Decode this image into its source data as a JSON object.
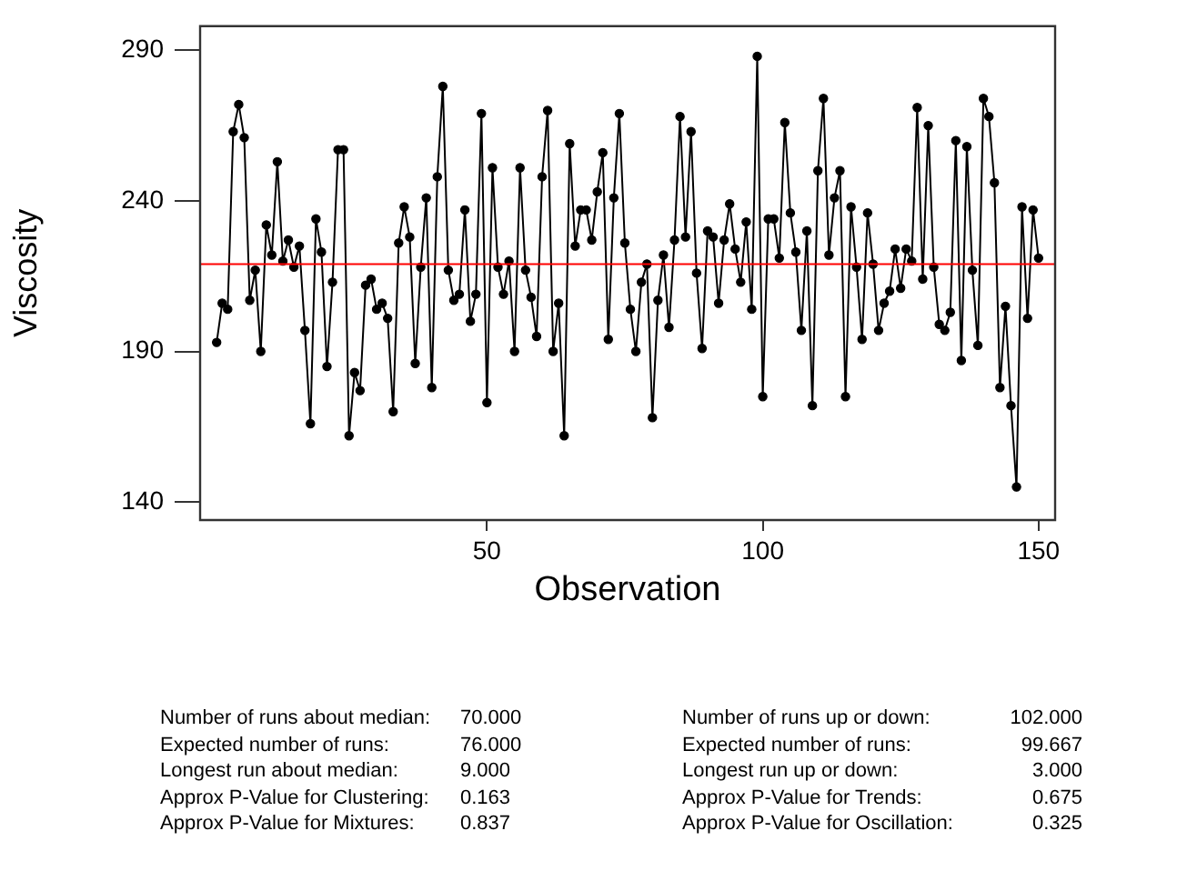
{
  "chart_data": {
    "type": "line",
    "xlabel": "Observation",
    "ylabel": "Viscosity",
    "x": [
      1,
      2,
      3,
      4,
      5,
      6,
      7,
      8,
      9,
      10,
      11,
      12,
      13,
      14,
      15,
      16,
      17,
      18,
      19,
      20,
      21,
      22,
      23,
      24,
      25,
      26,
      27,
      28,
      29,
      30,
      31,
      32,
      33,
      34,
      35,
      36,
      37,
      38,
      39,
      40,
      41,
      42,
      43,
      44,
      45,
      46,
      47,
      48,
      49,
      50,
      51,
      52,
      53,
      54,
      55,
      56,
      57,
      58,
      59,
      60,
      61,
      62,
      63,
      64,
      65,
      66,
      67,
      68,
      69,
      70,
      71,
      72,
      73,
      74,
      75,
      76,
      77,
      78,
      79,
      80,
      81,
      82,
      83,
      84,
      85,
      86,
      87,
      88,
      89,
      90,
      91,
      92,
      93,
      94,
      95,
      96,
      97,
      98,
      99,
      100,
      101,
      102,
      103,
      104,
      105,
      106,
      107,
      108,
      109,
      110,
      111,
      112,
      113,
      114,
      115,
      116,
      117,
      118,
      119,
      120,
      121,
      122,
      123,
      124,
      125,
      126,
      127,
      128,
      129,
      130,
      131,
      132,
      133,
      134,
      135,
      136,
      137,
      138,
      139,
      140,
      141,
      142,
      143,
      144,
      145,
      146,
      147,
      148,
      149,
      150
    ],
    "series": [
      {
        "color": "#000000",
        "values": [
          193,
          206,
          204,
          263,
          272,
          261,
          207,
          217,
          190,
          232,
          222,
          253,
          220,
          227,
          218,
          225,
          197,
          166,
          234,
          223,
          185,
          213,
          257,
          257,
          162,
          183,
          177,
          212,
          214,
          204,
          206,
          201,
          170,
          226,
          238,
          228,
          186,
          218,
          241,
          178,
          248,
          278,
          217,
          207,
          209,
          237,
          200,
          209,
          269,
          173,
          251,
          218,
          209,
          220,
          190,
          251,
          217,
          208,
          195,
          248,
          270,
          190,
          206,
          162,
          259,
          225,
          237,
          237,
          227,
          243,
          256,
          194,
          241,
          269,
          226,
          204,
          190,
          213,
          219,
          168,
          207,
          222,
          198,
          227,
          268,
          228,
          263,
          216,
          191,
          230,
          228,
          206,
          227,
          239,
          224,
          213,
          233,
          204,
          288,
          175,
          234,
          234,
          221,
          266,
          236,
          223,
          197,
          230,
          172,
          250,
          274,
          222,
          241,
          250,
          175,
          238,
          218,
          194,
          236,
          219,
          197,
          206,
          210,
          224,
          211,
          224,
          220,
          271,
          214,
          265,
          218,
          199,
          197,
          203,
          260,
          187,
          258,
          217,
          192,
          274,
          268,
          246,
          178,
          205,
          172,
          145,
          238,
          201,
          237,
          221
        ]
      }
    ],
    "xlim": [
      -2,
      153
    ],
    "xticks": [
      50,
      100,
      150
    ],
    "ylim": [
      134,
      298
    ],
    "yticks": [
      140,
      190,
      240,
      290
    ],
    "grid": false,
    "legend": false,
    "marker": "circle",
    "line_style": "solid",
    "ref_lines": [
      {
        "axis": "y",
        "value": 219,
        "color": "#ff0000"
      }
    ],
    "annotations": [
      "Number of runs about median:",
      "70.000",
      "Number of runs up or down:",
      "102.000",
      "Expected number of runs:",
      "76.000",
      "Expected number of runs:",
      "99.667",
      "Longest run about median:",
      "9.000",
      "Longest run up or down:",
      "3.000",
      "Approx P-Value for Clustering:",
      "0.163",
      "Approx P-Value for Trends:",
      "0.675",
      "Approx P-Value for Mixtures:",
      "0.837",
      "Approx P-Value for Oscillation:",
      "0.325"
    ]
  }
}
